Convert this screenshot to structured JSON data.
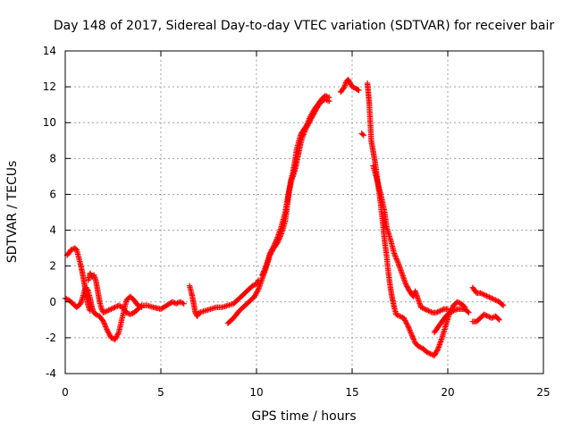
{
  "chart_data": {
    "type": "scatter",
    "title": "Day 148 of 2017, Sidereal Day-to-day VTEC variation (SDTVAR) for receiver bair",
    "xlabel": "GPS time / hours",
    "ylabel": "SDTVAR / TECUs",
    "xlim": [
      0,
      25
    ],
    "ylim": [
      -4,
      14
    ],
    "xticks": [
      0,
      5,
      10,
      15,
      20,
      25
    ],
    "yticks": [
      -4,
      -2,
      0,
      2,
      4,
      6,
      8,
      10,
      12,
      14
    ],
    "grid": true,
    "marker": "+",
    "color": "#ff0000",
    "series": [
      {
        "name": "seg1",
        "points": [
          [
            0.0,
            0.2
          ],
          [
            0.2,
            0.1
          ],
          [
            0.4,
            -0.1
          ],
          [
            0.6,
            -0.3
          ],
          [
            0.8,
            -0.1
          ],
          [
            0.9,
            0.2
          ],
          [
            1.0,
            0.6
          ],
          [
            1.1,
            0.8
          ],
          [
            1.2,
            0.6
          ],
          [
            1.3,
            0.2
          ],
          [
            1.35,
            -0.1
          ],
          [
            1.4,
            -0.3
          ],
          [
            1.5,
            -0.6
          ],
          [
            1.6,
            -0.7
          ],
          [
            1.8,
            -0.8
          ],
          [
            2.0,
            -1.1
          ],
          [
            2.2,
            -1.6
          ],
          [
            2.4,
            -2.0
          ],
          [
            2.6,
            -2.1
          ],
          [
            2.8,
            -1.7
          ],
          [
            3.0,
            -0.8
          ],
          [
            3.2,
            0.1
          ],
          [
            3.4,
            0.3
          ],
          [
            3.6,
            0.1
          ],
          [
            3.8,
            -0.2
          ],
          [
            4.0,
            -0.3
          ]
        ]
      },
      {
        "name": "seg2",
        "points": [
          [
            0.1,
            2.6
          ],
          [
            0.3,
            2.9
          ],
          [
            0.5,
            3.0
          ],
          [
            0.6,
            2.9
          ],
          [
            0.7,
            2.5
          ],
          [
            0.8,
            2.1
          ],
          [
            0.9,
            1.6
          ],
          [
            1.0,
            1.0
          ],
          [
            1.1,
            0.4
          ],
          [
            1.2,
            -0.2
          ],
          [
            1.3,
            -0.5
          ]
        ]
      },
      {
        "name": "seg3",
        "points": [
          [
            1.2,
            1.2
          ],
          [
            1.3,
            1.6
          ],
          [
            1.4,
            1.4
          ],
          [
            1.5,
            1.5
          ],
          [
            1.6,
            1.2
          ],
          [
            1.7,
            0.6
          ],
          [
            1.8,
            0.0
          ],
          [
            1.9,
            -0.4
          ],
          [
            2.0,
            -0.6
          ],
          [
            2.2,
            -0.5
          ],
          [
            2.4,
            -0.4
          ],
          [
            2.6,
            -0.3
          ],
          [
            2.8,
            -0.2
          ],
          [
            3.0,
            -0.3
          ],
          [
            3.2,
            -0.6
          ],
          [
            3.4,
            -0.7
          ],
          [
            3.6,
            -0.6
          ],
          [
            3.8,
            -0.4
          ],
          [
            4.0,
            -0.2
          ],
          [
            4.3,
            -0.2
          ],
          [
            4.6,
            -0.3
          ],
          [
            5.0,
            -0.4
          ],
          [
            5.3,
            -0.2
          ],
          [
            5.6,
            0.0
          ],
          [
            5.8,
            -0.1
          ],
          [
            6.0,
            0.0
          ],
          [
            6.2,
            -0.1
          ]
        ]
      },
      {
        "name": "seg4",
        "points": [
          [
            6.5,
            0.9
          ],
          [
            6.6,
            0.5
          ],
          [
            6.7,
            0.0
          ],
          [
            6.8,
            -0.6
          ],
          [
            6.9,
            -0.8
          ],
          [
            7.0,
            -0.6
          ],
          [
            7.3,
            -0.5
          ],
          [
            7.6,
            -0.4
          ],
          [
            7.9,
            -0.3
          ],
          [
            8.2,
            -0.3
          ],
          [
            8.5,
            -0.2
          ],
          [
            8.8,
            -0.1
          ],
          [
            9.0,
            0.1
          ],
          [
            9.3,
            0.4
          ],
          [
            9.6,
            0.7
          ],
          [
            9.8,
            0.9
          ],
          [
            10.0,
            1.0
          ],
          [
            10.1,
            1.2
          ]
        ]
      },
      {
        "name": "seg5",
        "points": [
          [
            8.5,
            -1.2
          ],
          [
            8.8,
            -0.9
          ],
          [
            9.1,
            -0.5
          ],
          [
            9.4,
            -0.2
          ],
          [
            9.7,
            0.1
          ],
          [
            9.9,
            0.3
          ],
          [
            10.1,
            0.7
          ],
          [
            10.3,
            1.3
          ],
          [
            10.5,
            1.9
          ],
          [
            10.7,
            2.6
          ],
          [
            10.9,
            3.0
          ],
          [
            11.1,
            3.3
          ],
          [
            11.3,
            3.8
          ],
          [
            11.5,
            4.5
          ],
          [
            11.6,
            5.3
          ],
          [
            11.7,
            6.1
          ],
          [
            11.8,
            6.7
          ],
          [
            11.9,
            7.0
          ],
          [
            12.0,
            7.3
          ],
          [
            12.1,
            7.8
          ],
          [
            12.2,
            8.3
          ],
          [
            12.3,
            8.8
          ],
          [
            12.4,
            9.2
          ],
          [
            12.6,
            9.7
          ],
          [
            12.8,
            10.1
          ],
          [
            13.0,
            10.5
          ],
          [
            13.2,
            10.9
          ],
          [
            13.4,
            11.2
          ],
          [
            13.6,
            11.3
          ],
          [
            13.8,
            11.2
          ]
        ]
      },
      {
        "name": "seg6",
        "points": [
          [
            10.3,
            1.5
          ],
          [
            10.5,
            2.0
          ],
          [
            10.7,
            2.7
          ],
          [
            10.9,
            3.1
          ],
          [
            11.1,
            3.6
          ],
          [
            11.3,
            4.2
          ],
          [
            11.5,
            5.0
          ],
          [
            11.6,
            5.6
          ],
          [
            11.7,
            6.2
          ],
          [
            11.8,
            6.8
          ],
          [
            11.9,
            7.2
          ],
          [
            12.0,
            7.8
          ],
          [
            12.1,
            8.5
          ],
          [
            12.2,
            8.9
          ],
          [
            12.3,
            9.3
          ],
          [
            12.4,
            9.5
          ],
          [
            12.6,
            9.8
          ],
          [
            12.8,
            10.3
          ],
          [
            13.0,
            10.7
          ],
          [
            13.2,
            11.0
          ],
          [
            13.4,
            11.3
          ],
          [
            13.6,
            11.5
          ],
          [
            13.8,
            11.4
          ]
        ]
      },
      {
        "name": "seg7",
        "points": [
          [
            14.4,
            11.7
          ],
          [
            14.6,
            12.0
          ],
          [
            14.7,
            12.3
          ],
          [
            14.8,
            12.4
          ],
          [
            14.9,
            12.2
          ],
          [
            15.0,
            12.0
          ],
          [
            15.2,
            11.9
          ],
          [
            15.35,
            11.8
          ]
        ]
      },
      {
        "name": "seg8",
        "points": [
          [
            15.5,
            9.4
          ],
          [
            15.6,
            9.3
          ]
        ]
      },
      {
        "name": "seg9",
        "points": [
          [
            15.8,
            12.2
          ],
          [
            15.85,
            11.6
          ],
          [
            15.9,
            11.0
          ],
          [
            15.95,
            10.0
          ],
          [
            16.0,
            9.0
          ],
          [
            16.1,
            8.4
          ],
          [
            16.2,
            7.8
          ],
          [
            16.3,
            7.0
          ],
          [
            16.4,
            6.2
          ],
          [
            16.5,
            5.4
          ],
          [
            16.6,
            4.4
          ],
          [
            16.7,
            3.4
          ],
          [
            16.8,
            2.6
          ],
          [
            16.9,
            1.6
          ],
          [
            17.0,
            0.8
          ],
          [
            17.1,
            0.2
          ],
          [
            17.2,
            -0.3
          ],
          [
            17.3,
            -0.7
          ],
          [
            17.5,
            -0.8
          ],
          [
            17.7,
            -0.9
          ],
          [
            17.9,
            -1.3
          ],
          [
            18.1,
            -1.8
          ],
          [
            18.3,
            -2.3
          ],
          [
            18.5,
            -2.5
          ],
          [
            18.7,
            -2.6
          ],
          [
            18.9,
            -2.8
          ],
          [
            19.1,
            -2.9
          ],
          [
            19.3,
            -3.0
          ],
          [
            19.5,
            -2.6
          ],
          [
            19.7,
            -2.0
          ],
          [
            19.9,
            -1.3
          ],
          [
            20.1,
            -0.6
          ],
          [
            20.3,
            -0.2
          ],
          [
            20.5,
            0.0
          ],
          [
            20.7,
            -0.1
          ],
          [
            20.9,
            -0.3
          ]
        ]
      },
      {
        "name": "seg10",
        "points": [
          [
            16.1,
            7.6
          ],
          [
            16.3,
            6.8
          ],
          [
            16.5,
            6.0
          ],
          [
            16.7,
            5.0
          ],
          [
            16.8,
            4.2
          ],
          [
            17.0,
            3.5
          ],
          [
            17.2,
            2.7
          ],
          [
            17.4,
            2.2
          ],
          [
            17.6,
            1.6
          ],
          [
            17.8,
            1.0
          ],
          [
            18.0,
            0.6
          ],
          [
            18.2,
            0.3
          ],
          [
            18.3,
            0.6
          ],
          [
            18.4,
            0.3
          ],
          [
            18.6,
            -0.3
          ],
          [
            18.8,
            -0.4
          ],
          [
            19.0,
            -0.5
          ],
          [
            19.2,
            -0.6
          ],
          [
            19.4,
            -0.6
          ],
          [
            19.6,
            -0.5
          ],
          [
            19.8,
            -0.4
          ],
          [
            20.0,
            -0.4
          ]
        ]
      },
      {
        "name": "seg11",
        "points": [
          [
            19.3,
            -1.7
          ],
          [
            19.5,
            -1.4
          ],
          [
            19.7,
            -1.1
          ],
          [
            19.9,
            -0.8
          ],
          [
            20.1,
            -0.6
          ],
          [
            20.3,
            -0.5
          ],
          [
            20.5,
            -0.4
          ],
          [
            20.7,
            -0.4
          ],
          [
            20.9,
            -0.4
          ],
          [
            21.1,
            -0.6
          ]
        ]
      },
      {
        "name": "seg12",
        "points": [
          [
            21.3,
            0.8
          ],
          [
            21.5,
            0.5
          ],
          [
            21.7,
            0.5
          ],
          [
            21.9,
            0.4
          ],
          [
            22.1,
            0.3
          ],
          [
            22.3,
            0.2
          ],
          [
            22.5,
            0.1
          ],
          [
            22.7,
            0.0
          ],
          [
            22.9,
            -0.2
          ]
        ]
      },
      {
        "name": "seg13",
        "points": [
          [
            21.3,
            -1.1
          ],
          [
            21.5,
            -1.1
          ],
          [
            21.7,
            -0.9
          ],
          [
            21.9,
            -0.7
          ],
          [
            22.1,
            -0.8
          ],
          [
            22.3,
            -0.9
          ],
          [
            22.5,
            -0.8
          ],
          [
            22.7,
            -1.0
          ]
        ]
      }
    ]
  }
}
